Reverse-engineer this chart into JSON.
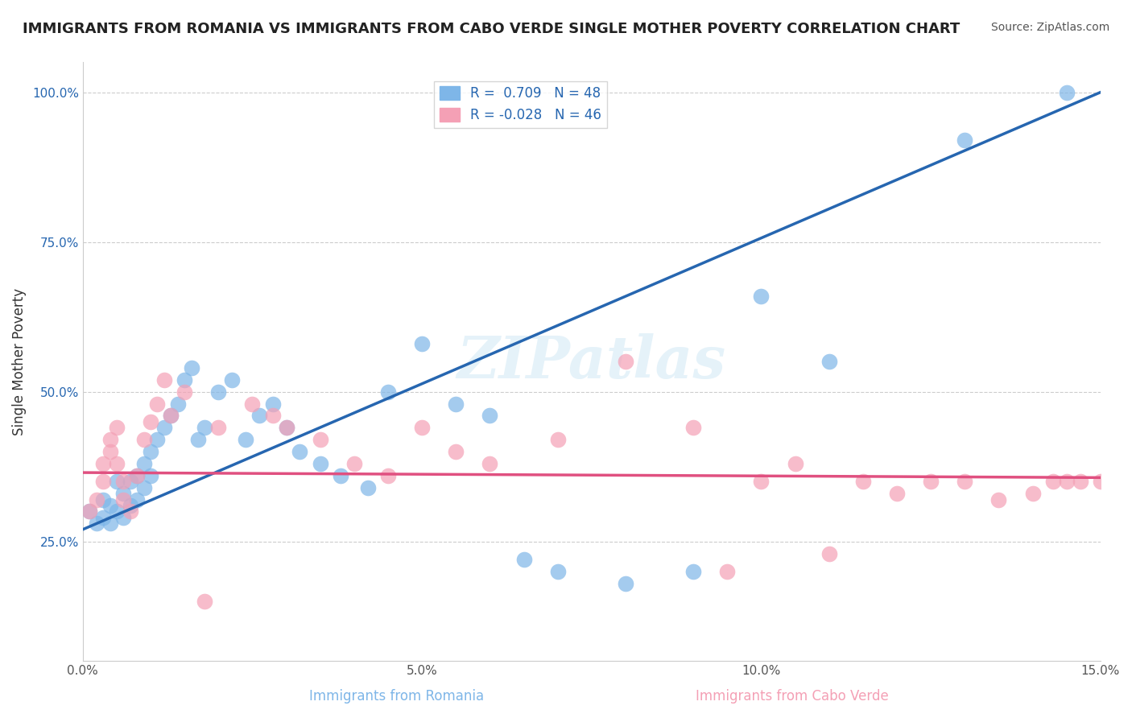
{
  "title": "IMMIGRANTS FROM ROMANIA VS IMMIGRANTS FROM CABO VERDE SINGLE MOTHER POVERTY CORRELATION CHART",
  "source": "Source: ZipAtlas.com",
  "xlabel_blue": "Immigrants from Romania",
  "xlabel_pink": "Immigrants from Cabo Verde",
  "ylabel": "Single Mother Poverty",
  "xlim": [
    0.0,
    0.15
  ],
  "ylim": [
    0.0,
    1.05
  ],
  "xticks": [
    0.0,
    0.05,
    0.1,
    0.15
  ],
  "xtick_labels": [
    "0.0%",
    "5.0%",
    "10.0%",
    "15.0%"
  ],
  "yticks": [
    0.25,
    0.5,
    0.75,
    1.0
  ],
  "ytick_labels": [
    "25.0%",
    "50.0%",
    "75.0%",
    "100.0%"
  ],
  "grid_color": "#cccccc",
  "background_color": "#ffffff",
  "blue_color": "#7eb6e8",
  "pink_color": "#f4a0b5",
  "blue_line_color": "#2666b0",
  "pink_line_color": "#e05080",
  "r_blue": 0.709,
  "n_blue": 48,
  "r_pink": -0.028,
  "n_pink": 46,
  "watermark": "ZIPatlas",
  "blue_scatter_x": [
    0.001,
    0.002,
    0.003,
    0.003,
    0.004,
    0.004,
    0.005,
    0.005,
    0.006,
    0.006,
    0.007,
    0.007,
    0.008,
    0.008,
    0.009,
    0.009,
    0.01,
    0.01,
    0.011,
    0.012,
    0.013,
    0.014,
    0.015,
    0.016,
    0.017,
    0.018,
    0.02,
    0.022,
    0.024,
    0.026,
    0.028,
    0.03,
    0.032,
    0.035,
    0.038,
    0.042,
    0.045,
    0.05,
    0.055,
    0.06,
    0.065,
    0.07,
    0.08,
    0.09,
    0.1,
    0.11,
    0.13,
    0.145
  ],
  "blue_scatter_y": [
    0.3,
    0.28,
    0.32,
    0.29,
    0.31,
    0.28,
    0.35,
    0.3,
    0.33,
    0.29,
    0.35,
    0.31,
    0.36,
    0.32,
    0.38,
    0.34,
    0.4,
    0.36,
    0.42,
    0.44,
    0.46,
    0.48,
    0.52,
    0.54,
    0.42,
    0.44,
    0.5,
    0.52,
    0.42,
    0.46,
    0.48,
    0.44,
    0.4,
    0.38,
    0.36,
    0.34,
    0.5,
    0.58,
    0.48,
    0.46,
    0.22,
    0.2,
    0.18,
    0.2,
    0.66,
    0.55,
    0.92,
    1.0
  ],
  "pink_scatter_x": [
    0.001,
    0.002,
    0.003,
    0.003,
    0.004,
    0.004,
    0.005,
    0.005,
    0.006,
    0.006,
    0.007,
    0.008,
    0.009,
    0.01,
    0.011,
    0.012,
    0.013,
    0.015,
    0.018,
    0.02,
    0.025,
    0.028,
    0.03,
    0.035,
    0.04,
    0.045,
    0.05,
    0.055,
    0.06,
    0.07,
    0.08,
    0.09,
    0.095,
    0.1,
    0.105,
    0.11,
    0.115,
    0.12,
    0.125,
    0.13,
    0.135,
    0.14,
    0.143,
    0.145,
    0.147,
    0.15
  ],
  "pink_scatter_y": [
    0.3,
    0.32,
    0.35,
    0.38,
    0.42,
    0.4,
    0.44,
    0.38,
    0.35,
    0.32,
    0.3,
    0.36,
    0.42,
    0.45,
    0.48,
    0.52,
    0.46,
    0.5,
    0.15,
    0.44,
    0.48,
    0.46,
    0.44,
    0.42,
    0.38,
    0.36,
    0.44,
    0.4,
    0.38,
    0.42,
    0.55,
    0.44,
    0.2,
    0.35,
    0.38,
    0.23,
    0.35,
    0.33,
    0.35,
    0.35,
    0.32,
    0.33,
    0.35,
    0.35,
    0.35,
    0.35
  ]
}
